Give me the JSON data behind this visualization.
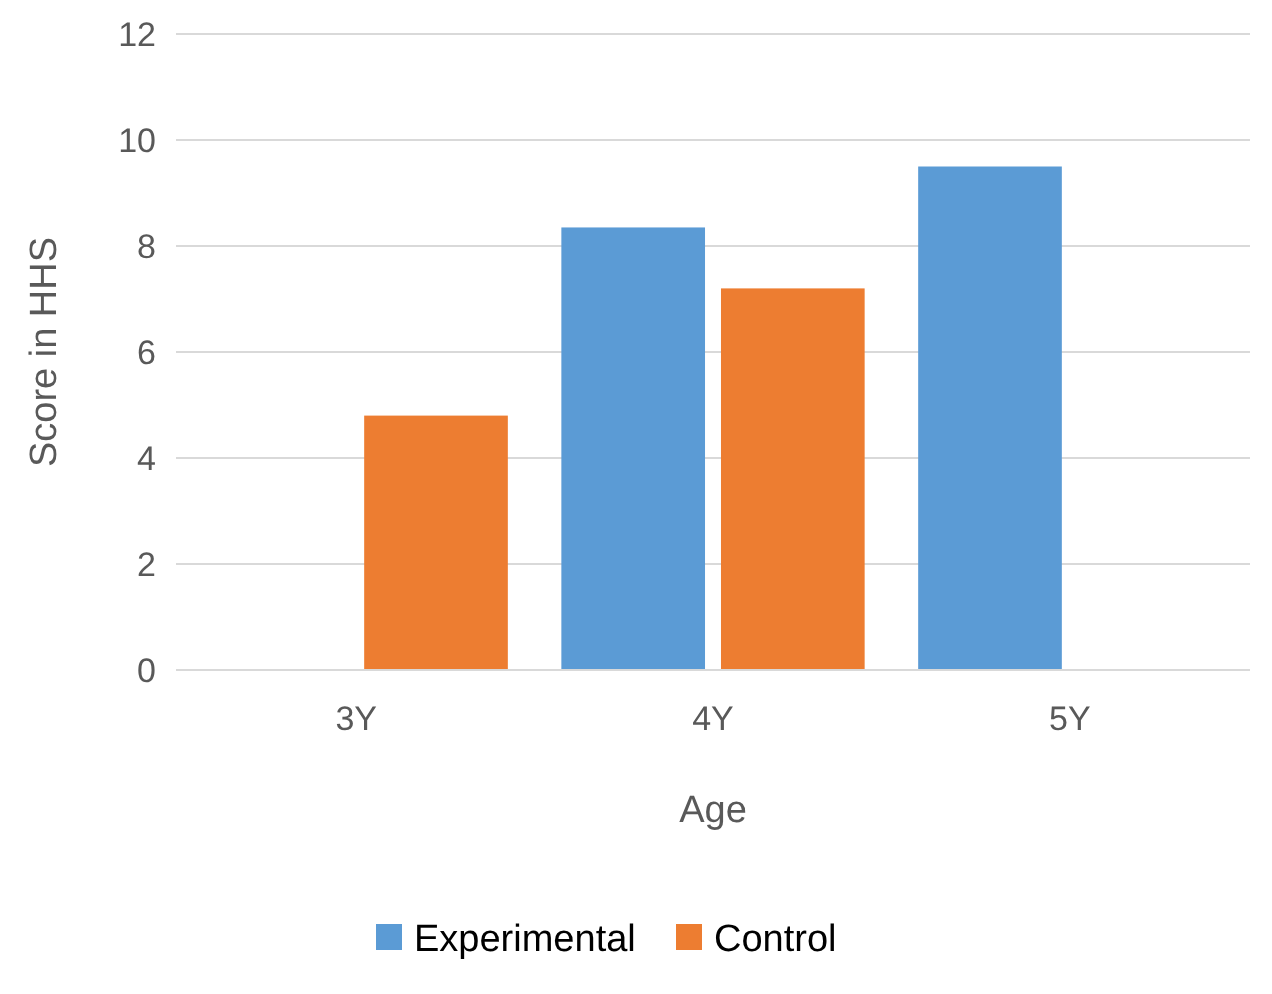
{
  "chart_data": {
    "type": "bar",
    "xlabel": "Age",
    "ylabel": "Score in HHS",
    "categories": [
      "3Y",
      "4Y",
      "5Y"
    ],
    "series": [
      {
        "name": "Experimental",
        "color": "#5b9bd5",
        "values": [
          null,
          8.35,
          9.5
        ]
      },
      {
        "name": "Control",
        "color": "#ed7d31",
        "values": [
          4.8,
          7.2,
          null
        ]
      }
    ],
    "ylim": [
      0,
      12
    ],
    "yticks": [
      0,
      2,
      4,
      6,
      8,
      10,
      12
    ],
    "grid": "y",
    "legend": "bottom"
  }
}
